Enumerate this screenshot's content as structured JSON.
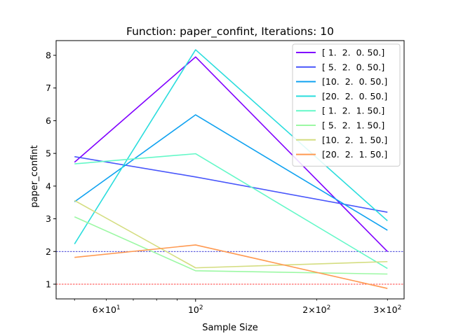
{
  "chart_data": {
    "type": "line",
    "title": "Function: paper_confint, Iterations: 10",
    "xlabel": "Sample Size",
    "ylabel": "paper_confint",
    "xscale": "log",
    "x": [
      50,
      100,
      300
    ],
    "xlim": [
      45,
      330
    ],
    "ylim": [
      0.55,
      8.45
    ],
    "yticks": [
      1,
      2,
      3,
      4,
      5,
      6,
      7,
      8
    ],
    "ytick_labels": [
      "1",
      "2",
      "3",
      "4",
      "5",
      "6",
      "7",
      "8"
    ],
    "xticks": [
      {
        "value": 60,
        "base": "6",
        "exp": "1"
      },
      {
        "value": 100,
        "base": "",
        "exp": "2"
      },
      {
        "value": 200,
        "base": "2",
        "exp": "2"
      },
      {
        "value": 300,
        "base": "3",
        "exp": "2"
      }
    ],
    "hlines": [
      {
        "y": 2,
        "color": "#0000cc"
      },
      {
        "y": 1,
        "color": "#ff0000"
      }
    ],
    "grid": false,
    "legend_position": "top-right",
    "series": [
      {
        "name": "[ 1.  2.  0. 50.]",
        "color": "#8000ff",
        "values": [
          4.73,
          7.95,
          2.0
        ]
      },
      {
        "name": "[ 5.  2.  0. 50.]",
        "color": "#4856fb",
        "values": [
          4.9,
          4.28,
          3.2
        ]
      },
      {
        "name": "[10.  2.  0. 50.]",
        "color": "#10a2f0",
        "values": [
          3.52,
          6.18,
          2.65
        ]
      },
      {
        "name": "[20.  2.  0. 50.]",
        "color": "#2adddd",
        "values": [
          2.23,
          8.17,
          2.94
        ]
      },
      {
        "name": "[ 1.  2.  1. 50.]",
        "color": "#64f8c8",
        "values": [
          4.68,
          4.99,
          1.48
        ]
      },
      {
        "name": "[ 5.  2.  1. 50.]",
        "color": "#9cf8a4",
        "values": [
          3.06,
          1.41,
          1.31
        ]
      },
      {
        "name": "[10.  2.  1. 50.]",
        "color": "#d4dd80",
        "values": [
          3.56,
          1.5,
          1.69
        ]
      },
      {
        "name": "[20.  2.  1. 50.]",
        "color": "#ff9a52",
        "values": [
          1.82,
          2.2,
          0.87
        ]
      }
    ]
  }
}
